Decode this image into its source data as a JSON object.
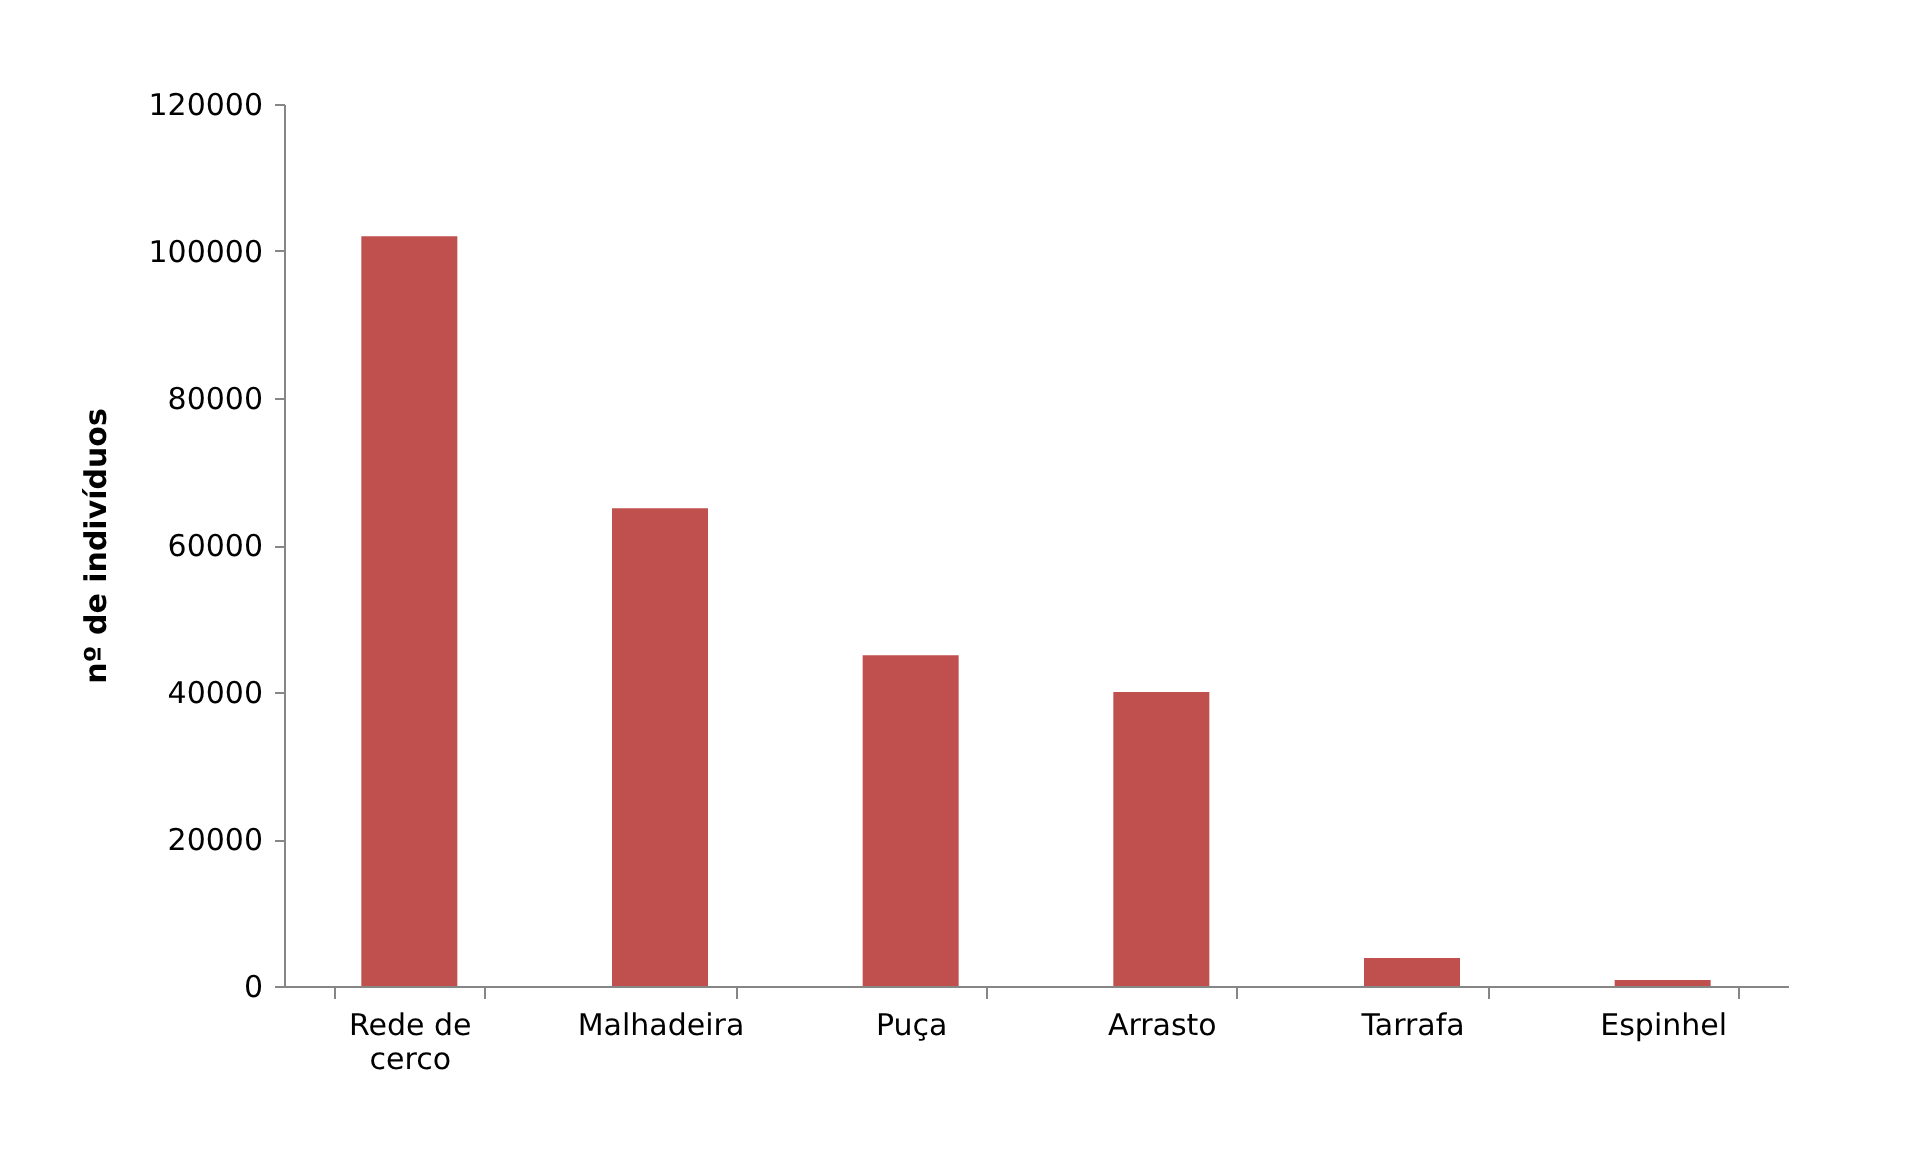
{
  "chart_data": {
    "type": "bar",
    "ylabel": "nº de indivíduos",
    "categories": [
      "Rede de cerco",
      "Malhadeira",
      "Puça",
      "Arrasto",
      "Tarrafa",
      "Espinhel"
    ],
    "values": [
      102000,
      65000,
      45000,
      40000,
      3800,
      800
    ],
    "color": "#c0504d",
    "ylim": [
      0,
      120000
    ],
    "yticks": [
      0,
      20000,
      40000,
      60000,
      80000,
      100000,
      120000
    ],
    "grid": false
  }
}
